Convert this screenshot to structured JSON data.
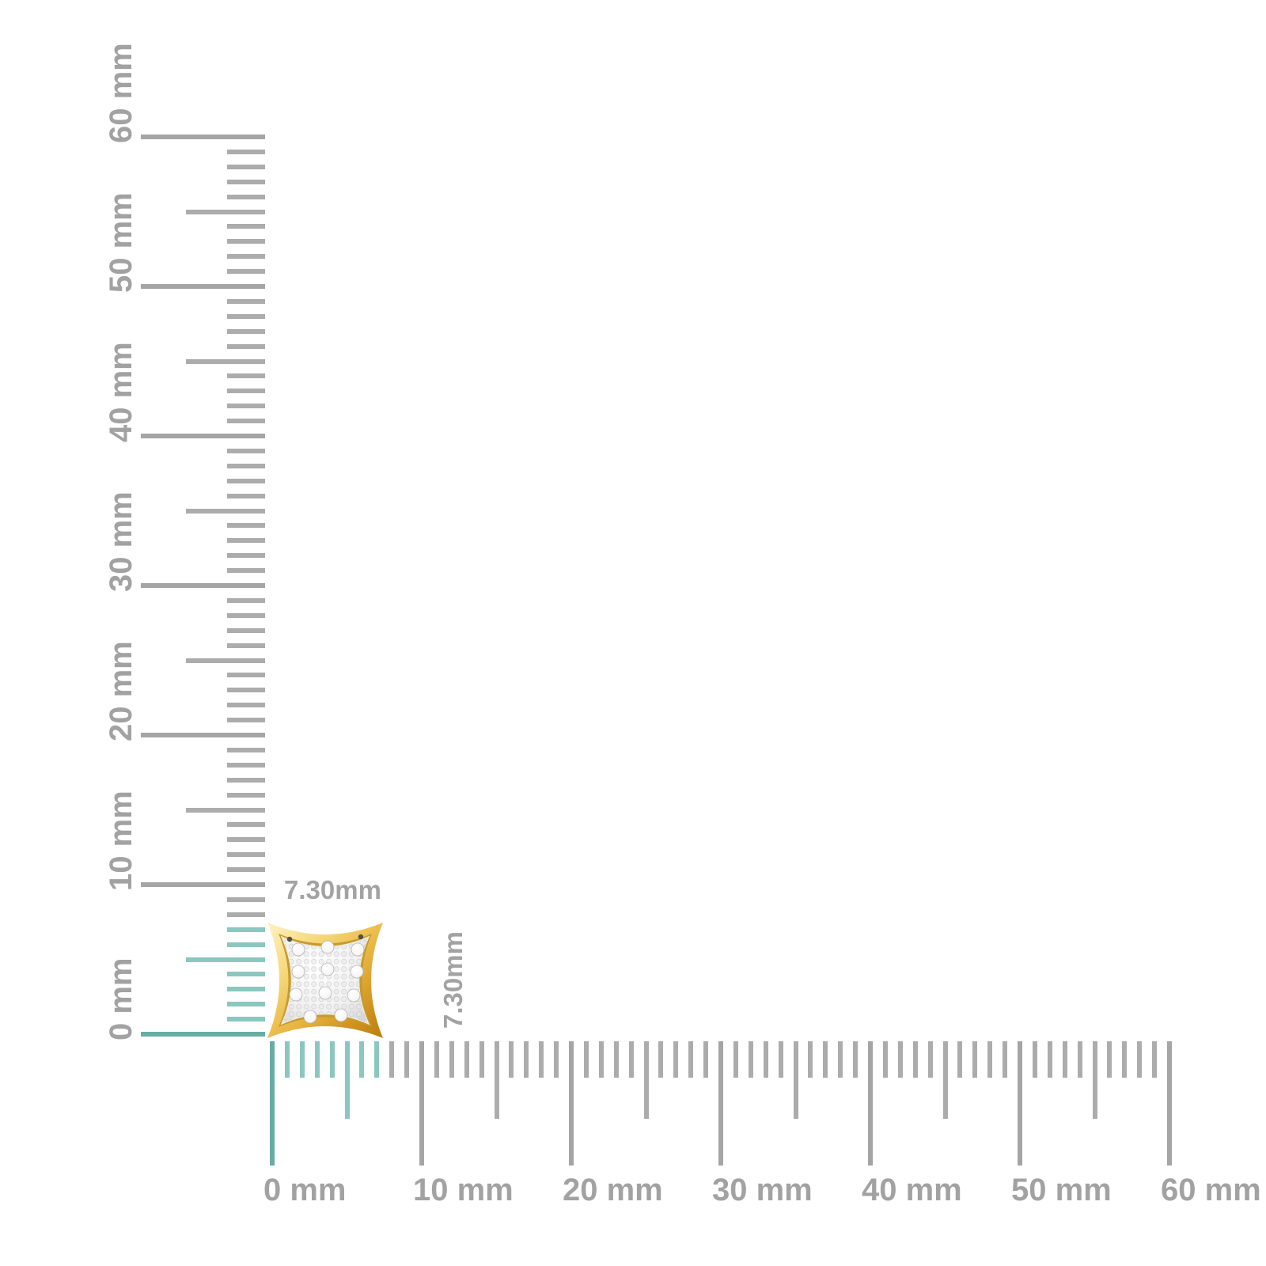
{
  "image_type": "product-dimension-diagram",
  "product": {
    "name": "gold-pave-diamond-square-stud-earring"
  },
  "dimensions": {
    "width": "7.30mm",
    "height": "7.30mm"
  },
  "horizontal_ruler": {
    "unit": "mm",
    "min_mm": 0,
    "max_mm": 60,
    "minor_step_mm": 1,
    "half_step_mm": 5,
    "major_step_mm": 10,
    "highlight_to_mm": 7.3,
    "labels": [
      "0 mm",
      "10 mm",
      "20 mm",
      "30 mm",
      "40 mm",
      "50 mm",
      "60 mm"
    ]
  },
  "vertical_ruler": {
    "unit": "mm",
    "min_mm": 0,
    "max_mm": 60,
    "minor_step_mm": 1,
    "half_step_mm": 5,
    "major_step_mm": 10,
    "highlight_to_mm": 7.3,
    "labels": [
      "0 mm",
      "10 mm",
      "20 mm",
      "30 mm",
      "40 mm",
      "50 mm",
      "60 mm"
    ]
  },
  "colors": {
    "background": "#FFFFFF",
    "highlight_teal": "#8BC7BF",
    "highlight_teal_major": "#68ACA6",
    "tick_gray": "#ACACAC",
    "tick_gray_major": "#A5A5A5",
    "ruler_label_gray": "#A2A2A2",
    "dimension_label_gray": "#A3A3A3",
    "gold_light": "#FBEFB4",
    "gold_mid": "#E9B744",
    "gold_dark": "#BA7F10",
    "pave_silver": "#E9E9E9",
    "diamond_white": "#FFFFFF"
  }
}
